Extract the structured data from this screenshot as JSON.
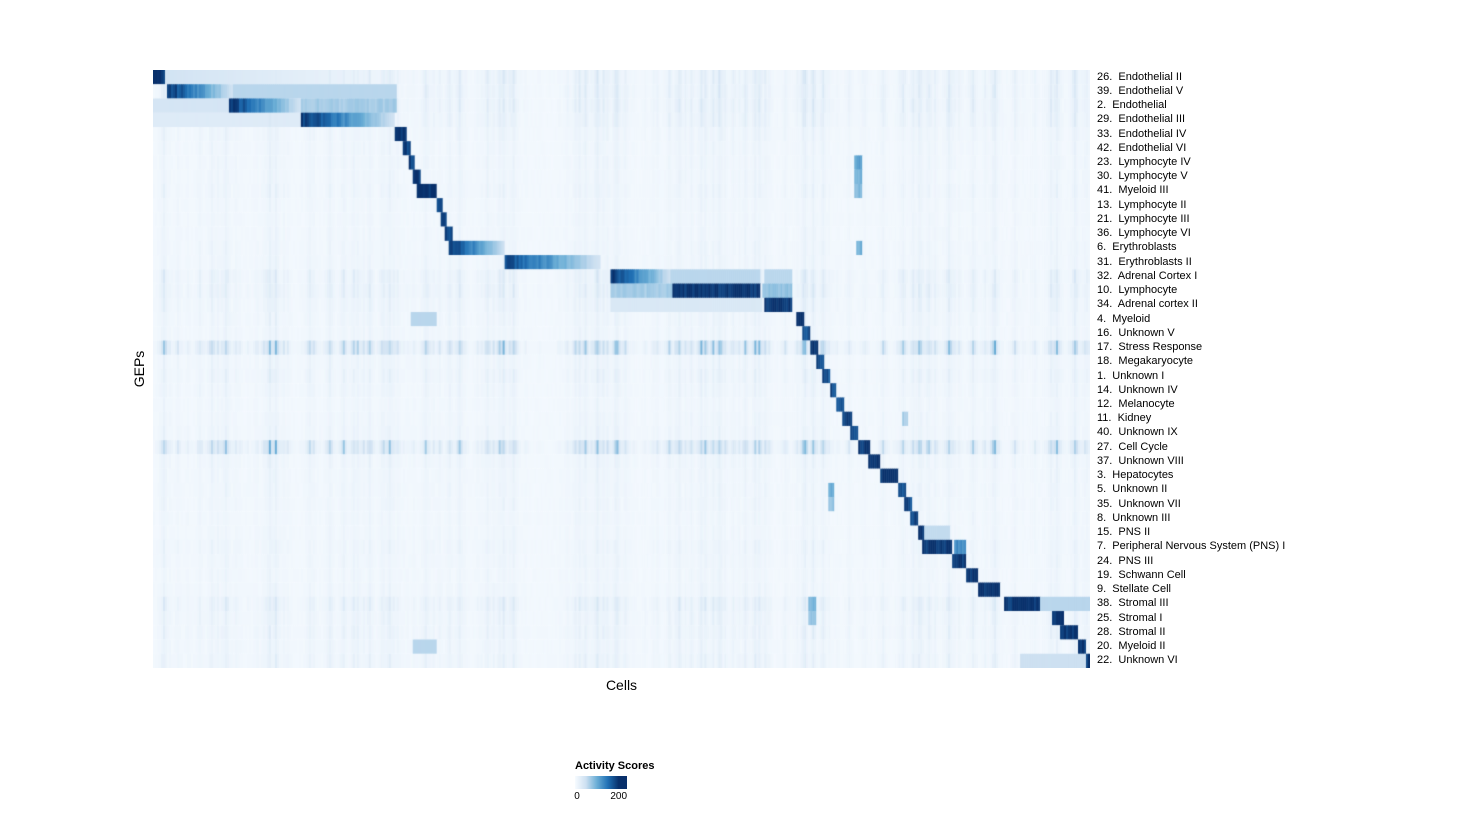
{
  "chart_data": {
    "type": "heatmap",
    "xlabel": "Cells",
    "ylabel": "GEPs",
    "vmin": 0,
    "vmax": 200,
    "colormap": "Blues",
    "colormap_stops": [
      [
        0,
        "#f7fbff"
      ],
      [
        0.25,
        "#cde0f1"
      ],
      [
        0.5,
        "#6baed6"
      ],
      [
        0.75,
        "#2171b5"
      ],
      [
        1,
        "#08306b"
      ]
    ],
    "legend": {
      "title": "Activity Scores",
      "ticks": [
        "0",
        "200"
      ]
    },
    "rows": [
      {
        "label": "26.  Endothelial II",
        "noise": 0.3,
        "blocks": [
          [
            0.0,
            0.013,
            1.0
          ],
          [
            0.013,
            0.26,
            0.22,
            "fade"
          ]
        ]
      },
      {
        "label": "39.  Endothelial V",
        "noise": 0.3,
        "blocks": [
          [
            0.015,
            0.085,
            1.0,
            "fade"
          ],
          [
            0.085,
            0.26,
            0.3
          ]
        ]
      },
      {
        "label": "2.  Endothelial",
        "noise": 0.3,
        "blocks": [
          [
            0.08,
            0.157,
            1.0,
            "fade"
          ],
          [
            0.157,
            0.26,
            0.35
          ],
          [
            0.0,
            0.08,
            0.2
          ]
        ]
      },
      {
        "label": "29.  Endothelial III",
        "noise": 0.25,
        "blocks": [
          [
            0.157,
            0.258,
            1.0,
            "fade"
          ],
          [
            0.0,
            0.157,
            0.15
          ]
        ]
      },
      {
        "label": "33.  Endothelial IV",
        "noise": 0.15,
        "blocks": [
          [
            0.258,
            0.27,
            1.0
          ]
        ]
      },
      {
        "label": "42.  Endothelial VI",
        "noise": 0.12,
        "blocks": [
          [
            0.266,
            0.275,
            0.95
          ]
        ]
      },
      {
        "label": "23.  Lymphocyte IV",
        "noise": 0.12,
        "blocks": [
          [
            0.272,
            0.28,
            0.95
          ],
          [
            0.748,
            0.756,
            0.55
          ]
        ]
      },
      {
        "label": "30.  Lymphocyte V",
        "noise": 0.12,
        "blocks": [
          [
            0.277,
            0.286,
            1.0
          ],
          [
            0.748,
            0.756,
            0.5
          ]
        ]
      },
      {
        "label": "41.  Myeloid III",
        "noise": 0.15,
        "blocks": [
          [
            0.281,
            0.302,
            1.0
          ],
          [
            0.748,
            0.757,
            0.45
          ]
        ]
      },
      {
        "label": "13.  Lymphocyte II",
        "noise": 0.1,
        "blocks": [
          [
            0.302,
            0.31,
            0.95
          ]
        ]
      },
      {
        "label": "21.  Lymphocyte III",
        "noise": 0.1,
        "blocks": [
          [
            0.307,
            0.314,
            0.9
          ]
        ]
      },
      {
        "label": "36.  Lymphocyte VI",
        "noise": 0.1,
        "blocks": [
          [
            0.312,
            0.319,
            0.9
          ]
        ]
      },
      {
        "label": "6.  Erythroblasts",
        "noise": 0.12,
        "blocks": [
          [
            0.316,
            0.376,
            1.0,
            "fade"
          ],
          [
            0.75,
            0.757,
            0.5
          ]
        ]
      },
      {
        "label": "31.  Erythroblasts II",
        "noise": 0.12,
        "blocks": [
          [
            0.376,
            0.478,
            0.92,
            "fade"
          ]
        ]
      },
      {
        "label": "32.  Adrenal Cortex I",
        "noise": 0.3,
        "blocks": [
          [
            0.488,
            0.553,
            1.0,
            "fade"
          ],
          [
            0.553,
            0.648,
            0.3
          ],
          [
            0.653,
            0.682,
            0.3
          ]
        ]
      },
      {
        "label": "10.  Lymphocyte",
        "noise": 0.3,
        "blocks": [
          [
            0.554,
            0.648,
            1.0
          ],
          [
            0.488,
            0.554,
            0.35
          ],
          [
            0.65,
            0.682,
            0.4
          ]
        ]
      },
      {
        "label": "34.  Adrenal cortex II",
        "noise": 0.2,
        "blocks": [
          [
            0.653,
            0.682,
            1.0
          ],
          [
            0.488,
            0.65,
            0.18
          ]
        ]
      },
      {
        "label": "4.  Myeloid",
        "noise": 0.15,
        "blocks": [
          [
            0.686,
            0.695,
            1.0
          ],
          [
            0.275,
            0.302,
            0.3
          ]
        ]
      },
      {
        "label": "16.  Unknown V",
        "noise": 0.12,
        "blocks": [
          [
            0.694,
            0.702,
            0.9
          ]
        ]
      },
      {
        "label": "17.  Stress Response",
        "noise": 0.85,
        "blocks": [
          [
            0.701,
            0.709,
            1.0
          ]
        ]
      },
      {
        "label": "18.  Megakaryocyte",
        "noise": 0.15,
        "blocks": [
          [
            0.708,
            0.716,
            0.9
          ]
        ]
      },
      {
        "label": "1.  Unknown I",
        "noise": 0.2,
        "blocks": [
          [
            0.715,
            0.723,
            0.9
          ]
        ]
      },
      {
        "label": "14.  Unknown IV",
        "noise": 0.15,
        "blocks": [
          [
            0.722,
            0.73,
            0.9
          ]
        ]
      },
      {
        "label": "12.  Melanocyte",
        "noise": 0.1,
        "blocks": [
          [
            0.729,
            0.737,
            0.9
          ]
        ]
      },
      {
        "label": "11.  Kidney",
        "noise": 0.12,
        "blocks": [
          [
            0.736,
            0.746,
            0.95
          ],
          [
            0.8,
            0.807,
            0.35
          ]
        ]
      },
      {
        "label": "40.  Unknown IX",
        "noise": 0.15,
        "blocks": [
          [
            0.744,
            0.753,
            0.9
          ]
        ]
      },
      {
        "label": "27.  Cell Cycle",
        "noise": 0.8,
        "blocks": [
          [
            0.752,
            0.765,
            1.0
          ]
        ]
      },
      {
        "label": "37.  Unknown VIII",
        "noise": 0.15,
        "blocks": [
          [
            0.764,
            0.776,
            1.0
          ]
        ]
      },
      {
        "label": "3.  Hepatocytes",
        "noise": 0.12,
        "blocks": [
          [
            0.776,
            0.796,
            1.0
          ]
        ]
      },
      {
        "label": "5.  Unknown II",
        "noise": 0.12,
        "blocks": [
          [
            0.795,
            0.803,
            0.9
          ],
          [
            0.72,
            0.728,
            0.5
          ]
        ]
      },
      {
        "label": "35.  Unknown VII",
        "noise": 0.12,
        "blocks": [
          [
            0.802,
            0.81,
            0.9
          ],
          [
            0.72,
            0.728,
            0.4
          ]
        ]
      },
      {
        "label": "8.  Unknown III",
        "noise": 0.1,
        "blocks": [
          [
            0.809,
            0.817,
            0.9
          ]
        ]
      },
      {
        "label": "15.  PNS II",
        "noise": 0.1,
        "blocks": [
          [
            0.816,
            0.824,
            0.95
          ],
          [
            0.824,
            0.85,
            0.28
          ]
        ]
      },
      {
        "label": "7.  Peripheral Nervous System (PNS) I",
        "noise": 0.15,
        "blocks": [
          [
            0.82,
            0.852,
            1.0
          ],
          [
            0.855,
            0.868,
            0.65
          ]
        ]
      },
      {
        "label": "24.  PNS III",
        "noise": 0.12,
        "blocks": [
          [
            0.852,
            0.868,
            1.0
          ]
        ]
      },
      {
        "label": "19.  Schwann Cell",
        "noise": 0.1,
        "blocks": [
          [
            0.868,
            0.88,
            1.0
          ]
        ]
      },
      {
        "label": "9.  Stellate Cell",
        "noise": 0.12,
        "blocks": [
          [
            0.881,
            0.904,
            1.0
          ]
        ]
      },
      {
        "label": "38.  Stromal III",
        "noise": 0.3,
        "blocks": [
          [
            0.908,
            0.947,
            1.0
          ],
          [
            0.7,
            0.708,
            0.45
          ],
          [
            0.947,
            0.999,
            0.3
          ]
        ]
      },
      {
        "label": "25.  Stromal I",
        "noise": 0.2,
        "blocks": [
          [
            0.96,
            0.973,
            1.0
          ],
          [
            0.7,
            0.708,
            0.4
          ]
        ]
      },
      {
        "label": "28.  Stromal II",
        "noise": 0.2,
        "blocks": [
          [
            0.968,
            0.988,
            1.0
          ]
        ]
      },
      {
        "label": "20.  Myeloid II",
        "noise": 0.15,
        "blocks": [
          [
            0.988,
            0.995,
            1.0
          ],
          [
            0.278,
            0.302,
            0.3
          ]
        ]
      },
      {
        "label": "22.  Unknown VI",
        "noise": 0.2,
        "blocks": [
          [
            0.995,
            1.0,
            1.0
          ],
          [
            0.925,
            0.995,
            0.25
          ]
        ]
      }
    ]
  }
}
